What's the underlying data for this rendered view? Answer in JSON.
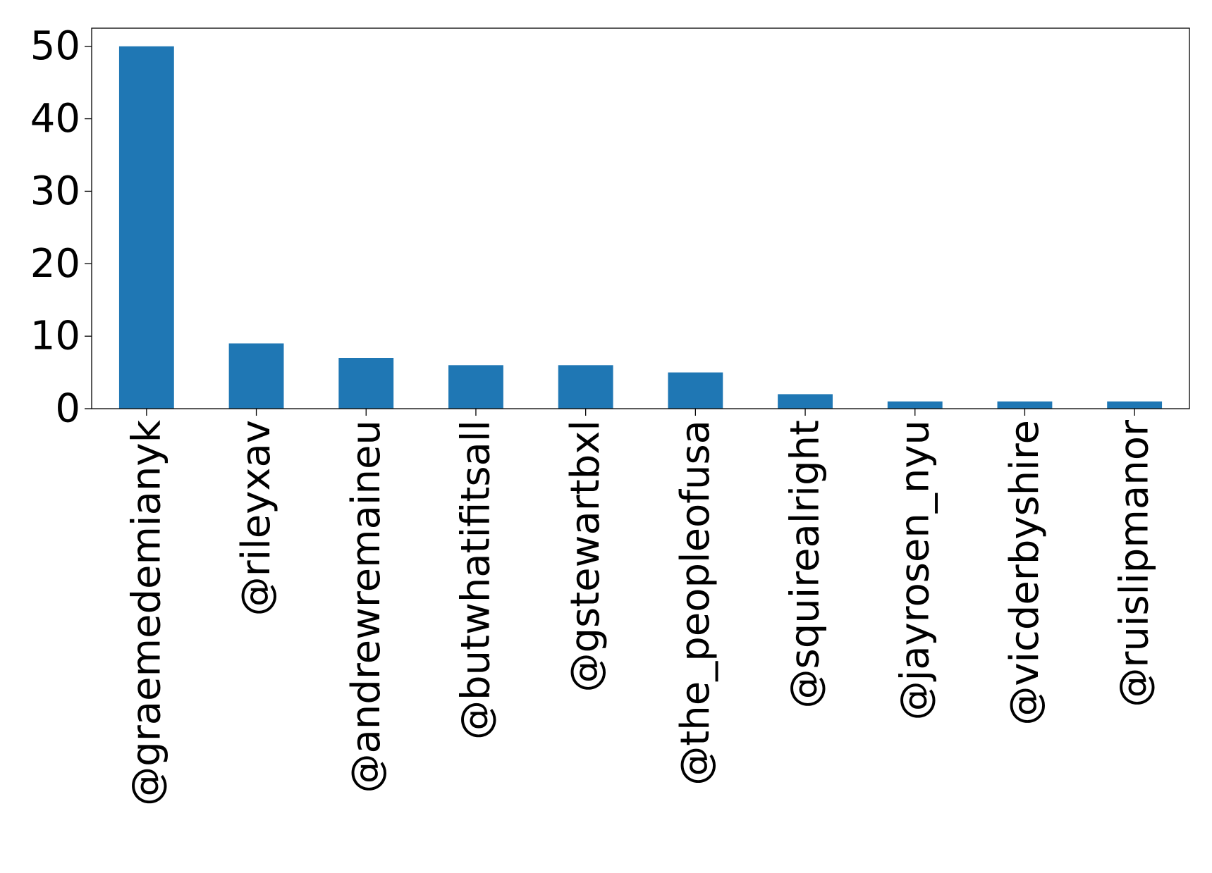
{
  "chart_data": {
    "type": "bar",
    "categories": [
      "@graemedemianyk",
      "@rileyxav",
      "@andrewremaineu",
      "@butwhatifitsall",
      "@gstewartbxl",
      "@the_peopleofusa",
      "@squirealright",
      "@jayrosen_nyu",
      "@vicderbyshire",
      "@ruislipmanor"
    ],
    "values": [
      50,
      9,
      7,
      6,
      6,
      5,
      2,
      1,
      1,
      1
    ],
    "title": "",
    "xlabel": "",
    "ylabel": "",
    "ylim": [
      0,
      52.5
    ],
    "yticks": [
      0,
      10,
      20,
      30,
      40,
      50
    ],
    "grid": false,
    "legend": "none",
    "colors": {
      "bar": "#1f77b4",
      "axis": "#000000",
      "background": "#ffffff"
    }
  }
}
